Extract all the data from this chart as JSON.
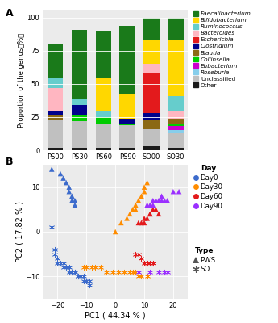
{
  "bar_categories": [
    "PS00",
    "PS30",
    "PS60",
    "PS90",
    "SO00",
    "SO30"
  ],
  "bar_legend_labels": [
    "Other",
    "Unclassified",
    "Roseburia",
    "Eubacterium",
    "Collinsella",
    "Blautia",
    "Clostridium",
    "Escherichia",
    "Bacteroides",
    "Ruminococcus",
    "Bifidobacterium",
    "Faecalibacterium"
  ],
  "bar_colors": [
    "#1a1a1a",
    "#c0c0c0",
    "#87ceeb",
    "#cc00cc",
    "#00cc00",
    "#8b6914",
    "#00008b",
    "#e31a1c",
    "#ffb6c1",
    "#66cdcc",
    "#ffd700",
    "#1a7a1a"
  ],
  "bar_data": {
    "PS00": [
      2,
      21,
      0,
      0,
      0,
      3,
      3,
      0,
      18,
      8,
      0,
      25
    ],
    "PS30": [
      2,
      20,
      0,
      0,
      4,
      0,
      8,
      0,
      0,
      5,
      0,
      52
    ],
    "PS60": [
      2,
      18,
      0,
      0,
      5,
      0,
      0,
      0,
      0,
      5,
      25,
      35
    ],
    "PS90": [
      2,
      17,
      0,
      0,
      1,
      0,
      4,
      0,
      0,
      0,
      18,
      52
    ],
    "SO00": [
      3,
      13,
      0,
      0,
      0,
      7,
      5,
      30,
      7,
      0,
      18,
      17
    ],
    "SO30": [
      2,
      11,
      2,
      3,
      2,
      4,
      0,
      0,
      5,
      12,
      42,
      17
    ]
  },
  "scatter_day0_pws": [
    [
      -22,
      14
    ],
    [
      -19,
      13
    ],
    [
      -18,
      12
    ],
    [
      -17,
      11
    ],
    [
      -16,
      10
    ],
    [
      -16,
      9
    ],
    [
      -15,
      8
    ],
    [
      -15,
      7
    ],
    [
      -14,
      7
    ],
    [
      -14,
      6
    ]
  ],
  "scatter_day0_so": [
    [
      -22,
      1
    ],
    [
      -21,
      -4
    ],
    [
      -21,
      -5
    ],
    [
      -20,
      -6
    ],
    [
      -20,
      -7
    ],
    [
      -19,
      -7
    ],
    [
      -18,
      -7
    ],
    [
      -18,
      -8
    ],
    [
      -17,
      -8
    ],
    [
      -17,
      -8
    ],
    [
      -16,
      -8
    ],
    [
      -16,
      -9
    ],
    [
      -15,
      -9
    ],
    [
      -15,
      -9
    ],
    [
      -14,
      -9
    ],
    [
      -14,
      -9
    ],
    [
      -13,
      -10
    ],
    [
      -13,
      -10
    ],
    [
      -12,
      -10
    ],
    [
      -12,
      -10
    ],
    [
      -11,
      -10
    ],
    [
      -11,
      -11
    ],
    [
      -10,
      -11
    ],
    [
      -10,
      -11
    ],
    [
      -9,
      -11
    ],
    [
      -9,
      -12
    ]
  ],
  "scatter_day30_pws": [
    [
      0,
      0
    ],
    [
      2,
      2
    ],
    [
      4,
      3
    ],
    [
      5,
      4
    ],
    [
      6,
      5
    ],
    [
      7,
      5
    ],
    [
      7,
      6
    ],
    [
      8,
      7
    ],
    [
      9,
      8
    ],
    [
      10,
      9
    ],
    [
      10,
      10
    ],
    [
      11,
      11
    ]
  ],
  "scatter_day30_so": [
    [
      -11,
      -8
    ],
    [
      -10,
      -8
    ],
    [
      -8,
      -8
    ],
    [
      -7,
      -8
    ],
    [
      -5,
      -8
    ],
    [
      -3,
      -9
    ],
    [
      -1,
      -9
    ],
    [
      1,
      -9
    ],
    [
      3,
      -9
    ],
    [
      5,
      -9
    ],
    [
      6,
      -9
    ],
    [
      7,
      -9
    ],
    [
      8,
      -10
    ],
    [
      9,
      -10
    ],
    [
      11,
      -10
    ]
  ],
  "scatter_day60_pws": [
    [
      8,
      2
    ],
    [
      9,
      2
    ],
    [
      10,
      2
    ],
    [
      10,
      3
    ],
    [
      11,
      3
    ],
    [
      12,
      4
    ],
    [
      12,
      4
    ],
    [
      13,
      5
    ],
    [
      14,
      5
    ],
    [
      15,
      4
    ]
  ],
  "scatter_day60_so": [
    [
      7,
      -5
    ],
    [
      8,
      -5
    ],
    [
      9,
      -6
    ],
    [
      10,
      -7
    ],
    [
      11,
      -7
    ],
    [
      12,
      -7
    ],
    [
      13,
      -7
    ]
  ],
  "scatter_day90_pws": [
    [
      11,
      6
    ],
    [
      12,
      6
    ],
    [
      13,
      6
    ],
    [
      13,
      7
    ],
    [
      14,
      7
    ],
    [
      15,
      7
    ],
    [
      16,
      7
    ],
    [
      16,
      8
    ],
    [
      17,
      7
    ],
    [
      18,
      7
    ],
    [
      20,
      9
    ],
    [
      22,
      9
    ]
  ],
  "scatter_day90_so": [
    [
      8,
      -9
    ],
    [
      12,
      -9
    ],
    [
      15,
      -9
    ],
    [
      17,
      -9
    ],
    [
      18,
      -9
    ]
  ],
  "pc1_label": "PC1 ( 44.34 % )",
  "pc2_label": "PC2 ( 17.82 % )",
  "day_colors": [
    "#3c6bcc",
    "#ff8c00",
    "#e31a1c",
    "#9b30ff"
  ],
  "day_labels": [
    "Day0",
    "Day30",
    "Day60",
    "Day90"
  ],
  "xlim": [
    -25,
    25
  ],
  "ylim": [
    -15,
    15
  ],
  "xticks": [
    -20,
    -10,
    0,
    10,
    20
  ],
  "yticks": [
    -10,
    0,
    10
  ]
}
